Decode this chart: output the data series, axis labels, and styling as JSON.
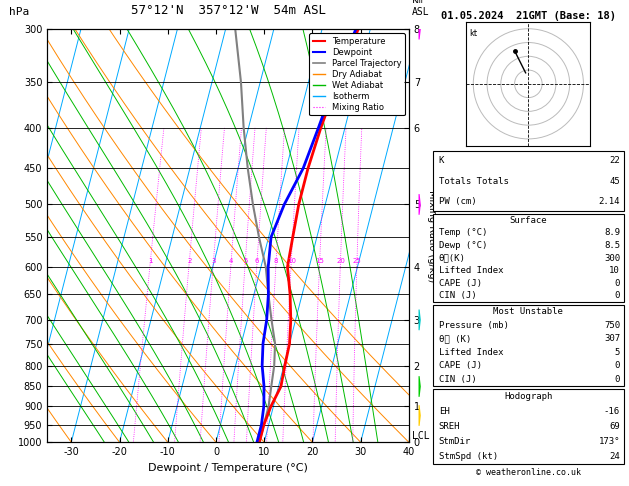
{
  "title_left": "57°12'N  357°12'W  54m ASL",
  "title_right": "01.05.2024  21GMT (Base: 18)",
  "xlabel": "Dewpoint / Temperature (°C)",
  "ylabel_left": "hPa",
  "copyright": "© weatheronline.co.uk",
  "pressure_levels": [
    300,
    350,
    400,
    450,
    500,
    550,
    600,
    650,
    700,
    750,
    800,
    850,
    900,
    950,
    1000
  ],
  "temp_x": [
    7.5,
    6.0,
    5.0,
    4.5,
    4.5,
    5.0,
    5.5,
    7.5,
    9.0,
    10.0,
    10.2,
    10.5,
    9.5,
    9.0,
    9.0
  ],
  "dewp_x": [
    7.0,
    5.5,
    4.5,
    3.5,
    1.5,
    0.5,
    1.5,
    3.0,
    4.0,
    4.5,
    5.5,
    7.0,
    8.0,
    8.5,
    8.5
  ],
  "parcel_x": [
    -18,
    -14,
    -11,
    -8,
    -5,
    -2,
    1,
    3,
    5,
    7,
    8,
    8.5,
    9.0,
    9.0,
    9.0
  ],
  "temp_color": "#ff0000",
  "dewp_color": "#0000ff",
  "parcel_color": "#808080",
  "isotherm_color": "#00aaff",
  "dry_adiabat_color": "#ff8800",
  "wet_adiabat_color": "#00bb00",
  "mixing_ratio_color": "#ff00ff",
  "background_color": "#ffffff",
  "xlim": [
    -35,
    40
  ],
  "skew": 22,
  "km_ticks": [
    0,
    1,
    2,
    3,
    4,
    5,
    6,
    7,
    8
  ],
  "km_pressures": [
    1000,
    900,
    800,
    700,
    600,
    500,
    400,
    350,
    300
  ],
  "surface_temp": 8.9,
  "surface_dewp": 8.5,
  "surface_theta_e": 300,
  "surface_lifted_index": 10,
  "surface_cape": 0,
  "surface_cin": 0,
  "mu_pressure": 750,
  "mu_theta_e": 307,
  "mu_lifted_index": 5,
  "mu_cape": 0,
  "mu_cin": 0,
  "K": 22,
  "totals_totals": 45,
  "PW": 2.14,
  "EH": -16,
  "SREH": 69,
  "StmDir": 173,
  "StmSpd": 24,
  "hodo_u": [
    -2,
    -4,
    -6,
    -8,
    -10
  ],
  "hodo_v": [
    8,
    12,
    16,
    20,
    24
  ],
  "wind_barb_levels": [
    300,
    500,
    700,
    850,
    925
  ],
  "wind_barb_colors": [
    "#ff00ff",
    "#ff00ff",
    "#00cccc",
    "#00cc00",
    "#ffcc00"
  ]
}
